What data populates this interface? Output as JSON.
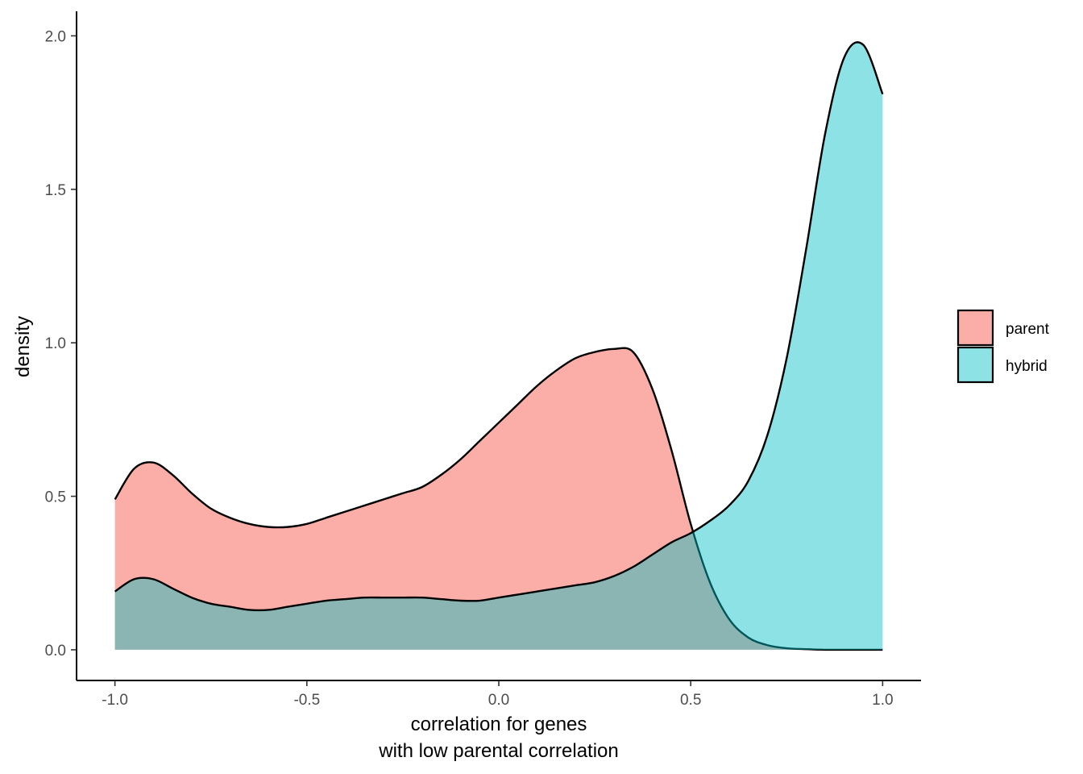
{
  "chart_data": {
    "type": "area",
    "subtype": "density",
    "title": "",
    "xlabel_lines": [
      "correlation for genes",
      "with low parental correlation"
    ],
    "ylabel": "density",
    "xlim": [
      -1.1,
      1.1
    ],
    "ylim": [
      -0.1,
      2.08
    ],
    "x_ticks": [
      -1.0,
      -0.5,
      0.0,
      0.5,
      1.0
    ],
    "x_tick_labels": [
      "-1.0",
      "-0.5",
      "0.0",
      "0.5",
      "1.0"
    ],
    "y_ticks": [
      0.0,
      0.5,
      1.0,
      1.5,
      2.0
    ],
    "y_tick_labels": [
      "0.0",
      "0.5",
      "1.0",
      "1.5",
      "2.0"
    ],
    "grid": false,
    "legend_position": "right",
    "series": [
      {
        "name": "parent",
        "color": "#F8766D",
        "opacity": 0.6,
        "x": [
          -1.0,
          -0.95,
          -0.9,
          -0.85,
          -0.8,
          -0.75,
          -0.7,
          -0.65,
          -0.6,
          -0.55,
          -0.5,
          -0.45,
          -0.4,
          -0.35,
          -0.3,
          -0.25,
          -0.2,
          -0.15,
          -0.1,
          -0.05,
          0.0,
          0.05,
          0.1,
          0.15,
          0.2,
          0.25,
          0.3,
          0.35,
          0.4,
          0.45,
          0.5,
          0.55,
          0.6,
          0.65,
          0.7,
          0.75,
          0.8,
          0.85,
          0.9,
          0.95,
          1.0
        ],
        "y": [
          0.49,
          0.59,
          0.61,
          0.57,
          0.51,
          0.46,
          0.43,
          0.41,
          0.4,
          0.4,
          0.41,
          0.43,
          0.45,
          0.47,
          0.49,
          0.51,
          0.53,
          0.57,
          0.62,
          0.68,
          0.74,
          0.8,
          0.86,
          0.91,
          0.95,
          0.97,
          0.98,
          0.97,
          0.85,
          0.65,
          0.41,
          0.22,
          0.1,
          0.04,
          0.015,
          0.005,
          0.002,
          0.0,
          0.0,
          0.0,
          0.0
        ]
      },
      {
        "name": "hybrid",
        "color": "#00BFC4",
        "opacity": 0.45,
        "x": [
          -1.0,
          -0.95,
          -0.9,
          -0.85,
          -0.8,
          -0.75,
          -0.7,
          -0.65,
          -0.6,
          -0.55,
          -0.5,
          -0.45,
          -0.4,
          -0.35,
          -0.3,
          -0.25,
          -0.2,
          -0.15,
          -0.1,
          -0.05,
          0.0,
          0.05,
          0.1,
          0.15,
          0.2,
          0.25,
          0.3,
          0.35,
          0.4,
          0.45,
          0.5,
          0.55,
          0.6,
          0.65,
          0.7,
          0.75,
          0.8,
          0.85,
          0.9,
          0.95,
          1.0
        ],
        "y": [
          0.19,
          0.23,
          0.23,
          0.2,
          0.17,
          0.15,
          0.14,
          0.13,
          0.13,
          0.14,
          0.15,
          0.16,
          0.165,
          0.17,
          0.17,
          0.17,
          0.17,
          0.165,
          0.16,
          0.16,
          0.17,
          0.18,
          0.19,
          0.2,
          0.21,
          0.22,
          0.24,
          0.27,
          0.31,
          0.35,
          0.38,
          0.42,
          0.47,
          0.55,
          0.7,
          0.95,
          1.3,
          1.68,
          1.93,
          1.97,
          1.81
        ]
      }
    ]
  }
}
